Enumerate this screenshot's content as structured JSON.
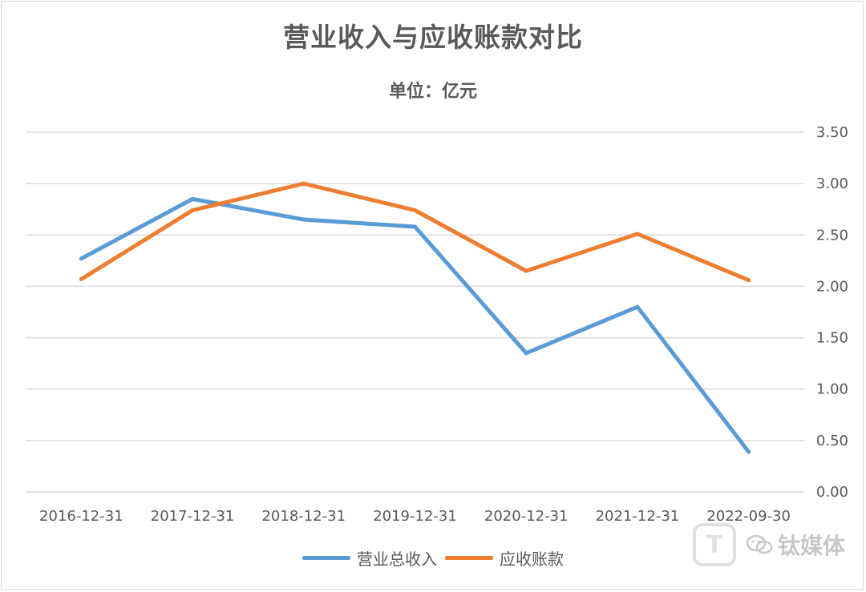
{
  "chart_data": {
    "type": "line",
    "title": "营业收入与应收账款对比",
    "subtitle": "单位：亿元",
    "categories": [
      "2016-12-31",
      "2017-12-31",
      "2018-12-31",
      "2019-12-31",
      "2020-12-31",
      "2021-12-31",
      "2022-09-30"
    ],
    "series": [
      {
        "name": "营业总收入",
        "color": "#5b9bd5",
        "values": [
          2.27,
          2.85,
          2.65,
          2.58,
          1.35,
          1.8,
          0.39
        ]
      },
      {
        "name": "应收账款",
        "color": "#ed7d31",
        "values": [
          2.07,
          2.74,
          3.0,
          2.74,
          2.15,
          2.51,
          2.06
        ]
      }
    ],
    "y_ticks": [
      "0.00",
      "0.50",
      "1.00",
      "1.50",
      "2.00",
      "2.50",
      "3.00",
      "3.50"
    ],
    "ylim": [
      0,
      3.5
    ],
    "grid": true,
    "y_axis_side": "right",
    "legend_position": "bottom"
  },
  "watermark": {
    "logo_glyph": "T",
    "icon": "wechat-icon",
    "text": "钛媒体"
  }
}
